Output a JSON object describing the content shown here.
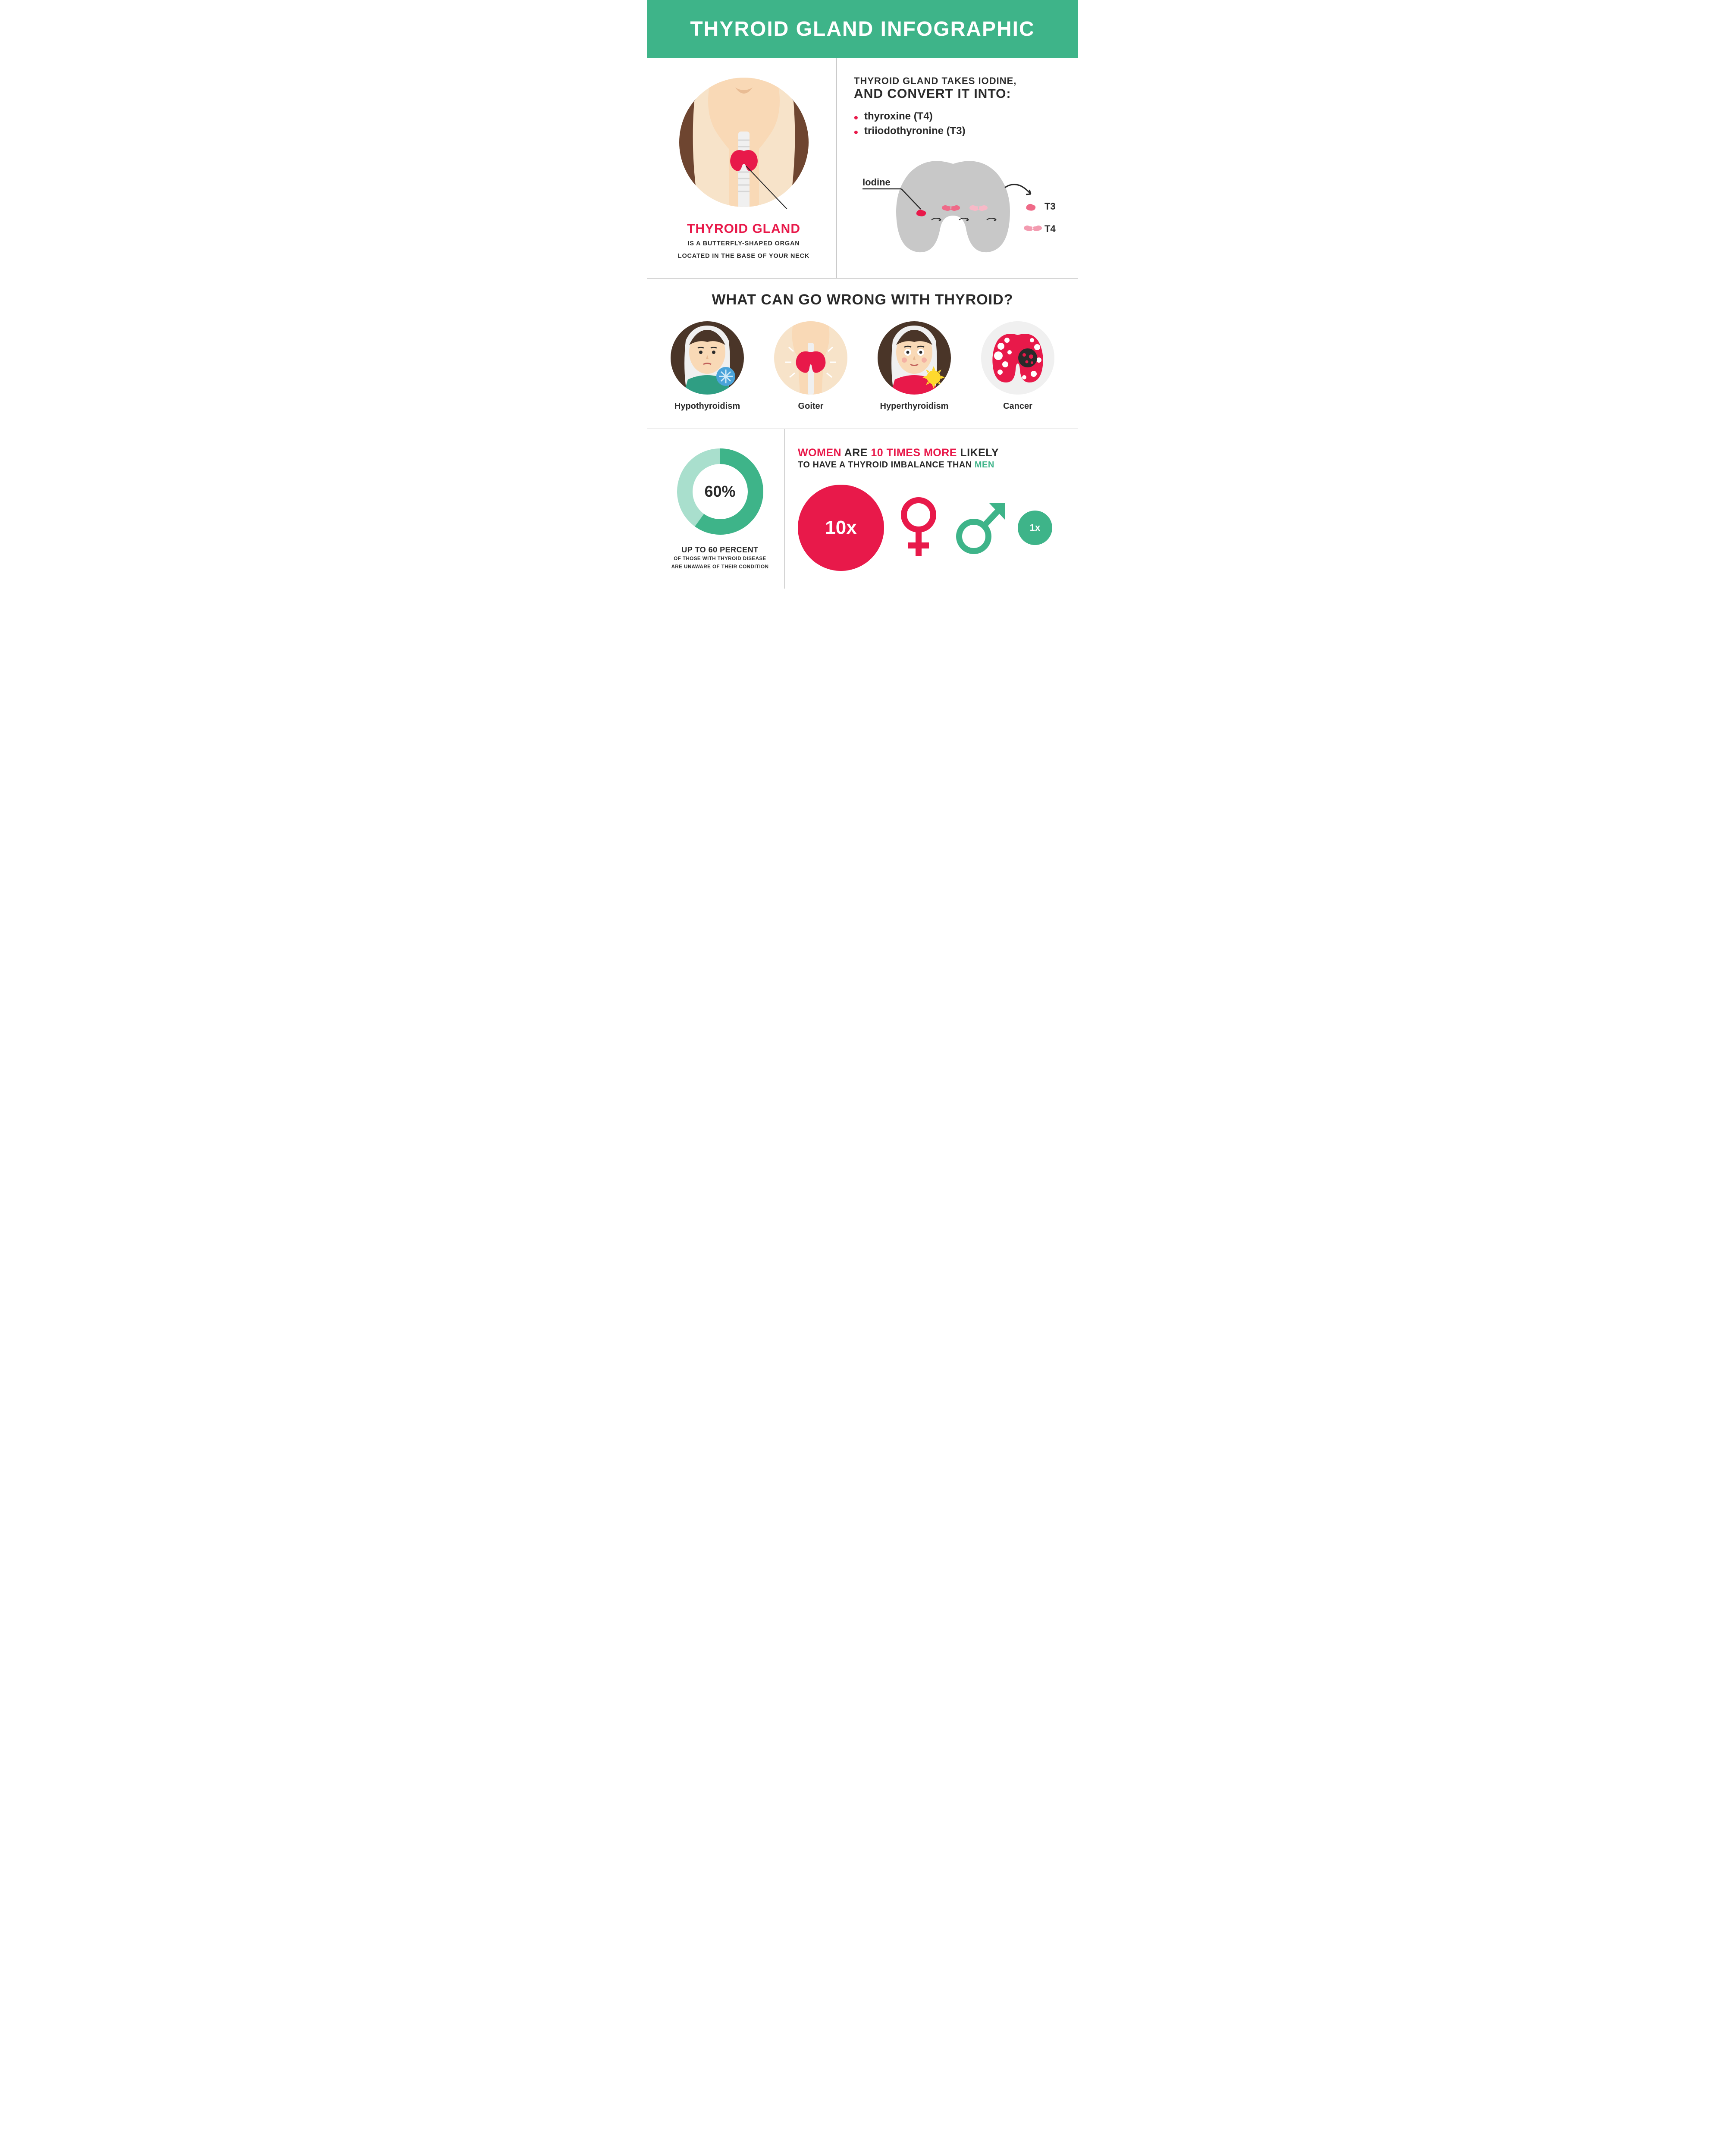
{
  "colors": {
    "teal": "#3eb489",
    "teal_light": "#a9dfcd",
    "pink": "#e8194a",
    "dark": "#2a2a2a",
    "gray_bg": "#f0f0f0",
    "skin": "#f9d9b6",
    "skin_neck": "#f7e3c9",
    "hair_brown": "#6e4530",
    "hair_dark": "#4a3528",
    "gray_thyroid": "#c8c8c8",
    "white": "#ffffff"
  },
  "header": {
    "title": "THYROID GLAND INFOGRAPHIC"
  },
  "section1": {
    "left": {
      "title": "THYROID GLAND",
      "desc_line1": "IS A BUTTERFLY-SHAPED ORGAN",
      "desc_line2": "LOCATED IN THE BASE OF YOUR NECK"
    },
    "right": {
      "line1": "THYROID GLAND TAKES IODINE,",
      "line2": "AND CONVERT IT INTO:",
      "bullets": [
        "thyroxine (T4)",
        "triiodothyronine (T3)"
      ],
      "iodine_label": "Iodine",
      "t3_label": "T3",
      "t4_label": "T4"
    }
  },
  "section2": {
    "title": "WHAT CAN GO WRONG WITH THYROID?",
    "conditions": [
      {
        "label": "Hypothyroidism",
        "icon": "woman-cold"
      },
      {
        "label": "Goiter",
        "icon": "neck-goiter"
      },
      {
        "label": "Hyperthyroidism",
        "icon": "woman-hot"
      },
      {
        "label": "Cancer",
        "icon": "thyroid-cancer"
      }
    ]
  },
  "section3": {
    "donut": {
      "percent": 60,
      "center_label": "60%",
      "headline": "UP TO 60 PERCENT",
      "sub_line1": "OF THOSE WITH THYROID DISEASE",
      "sub_line2": "ARE UNAWARE OF THEIR CONDITION",
      "fill_color": "#3eb489",
      "track_color": "#a9dfcd",
      "thickness": 36
    },
    "gender": {
      "headline_women": "WOMEN",
      "headline_mid1": " ARE ",
      "headline_factor": "10 TIMES MORE",
      "headline_mid2": " LIKELY",
      "sub_line1": "TO HAVE A THYROID",
      "sub_line2": " IMBALANCE THAN ",
      "sub_men": "MEN",
      "big_label": "10x",
      "small_label": "1x"
    }
  }
}
